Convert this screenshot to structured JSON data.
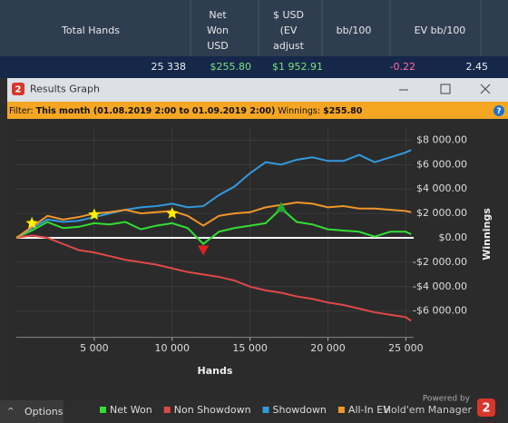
{
  "summary": {
    "headers": [
      [
        "Total Hands"
      ],
      [
        "Net",
        "Won",
        "USD"
      ],
      [
        "$ USD",
        "(EV",
        "adjust"
      ],
      [
        "bb/100"
      ],
      [
        "EV bb/100"
      ]
    ],
    "values": [
      "25 338",
      "$255.80",
      "$1 952.91",
      "-0.22",
      "2.45"
    ]
  },
  "window": {
    "title": "Results Graph",
    "filter_label": "Filter:",
    "filter_period": "This month (01.08.2019 2:00 to 01.09.2019 2:00)",
    "winnings_label": "Winnings:",
    "winnings": "$255.80"
  },
  "chart_data": {
    "type": "line",
    "x_label": "Hands",
    "y_label": "Winnings",
    "x": [
      0,
      1000,
      2000,
      3000,
      4000,
      5000,
      6000,
      7000,
      8000,
      9000,
      10000,
      11000,
      12000,
      13000,
      14000,
      15000,
      16000,
      17000,
      18000,
      19000,
      20000,
      21000,
      22000,
      23000,
      24000,
      25000,
      25338
    ],
    "series": [
      {
        "name": "Net Won",
        "color": "#33dd33",
        "values": [
          0,
          600,
          1300,
          800,
          900,
          1200,
          1100,
          1300,
          700,
          1000,
          1200,
          800,
          -500,
          500,
          800,
          1000,
          1200,
          2400,
          1300,
          1100,
          700,
          600,
          500,
          100,
          500,
          500,
          300
        ]
      },
      {
        "name": "Non Showdown",
        "color": "#e04848",
        "values": [
          0,
          200,
          0,
          -500,
          -1000,
          -1200,
          -1500,
          -1800,
          -2000,
          -2200,
          -2500,
          -2800,
          -3000,
          -3200,
          -3500,
          -4000,
          -4300,
          -4500,
          -4800,
          -5000,
          -5300,
          -5500,
          -5800,
          -6100,
          -6300,
          -6500,
          -6800
        ]
      },
      {
        "name": "Showdown",
        "color": "#3399dd",
        "values": [
          0,
          800,
          1500,
          1300,
          1400,
          1700,
          2000,
          2300,
          2500,
          2600,
          2800,
          2500,
          2600,
          3500,
          4200,
          5300,
          6200,
          6000,
          6400,
          6600,
          6300,
          6300,
          6800,
          6200,
          6600,
          7000,
          7200
        ]
      },
      {
        "name": "All-In EV",
        "color": "#f0962a",
        "values": [
          0,
          900,
          1800,
          1500,
          1700,
          2000,
          2100,
          2300,
          2000,
          2100,
          2200,
          1800,
          1000,
          1800,
          2000,
          2100,
          2500,
          2700,
          2900,
          2800,
          2500,
          2600,
          2400,
          2400,
          2300,
          2200,
          2100
        ]
      }
    ],
    "markers": [
      {
        "shape": "star",
        "color": "#ffee00",
        "x": 1000,
        "y": 1200
      },
      {
        "shape": "star",
        "color": "#ffee00",
        "x": 5000,
        "y": 1900
      },
      {
        "shape": "star",
        "color": "#ffee00",
        "x": 10000,
        "y": 2000
      },
      {
        "shape": "down",
        "color": "#dd2222",
        "x": 12000,
        "y": -1000
      },
      {
        "shape": "up",
        "color": "#22aa33",
        "x": 17000,
        "y": 2500
      }
    ],
    "xlim": [
      0,
      25500
    ],
    "ylim": [
      -8000,
      9000
    ],
    "xticks": [
      {
        "value": 5000,
        "label": "5 000"
      },
      {
        "value": 10000,
        "label": "10 000"
      },
      {
        "value": 15000,
        "label": "15 000"
      },
      {
        "value": 20000,
        "label": "20 000"
      },
      {
        "value": 25000,
        "label": "25 000"
      }
    ],
    "yticks": [
      {
        "value": -6000,
        "label": "-$6 000.00"
      },
      {
        "value": -4000,
        "label": "-$4 000.00"
      },
      {
        "value": -2000,
        "label": "-$2 000.00"
      },
      {
        "value": 0,
        "label": "$0.00"
      },
      {
        "value": 2000,
        "label": "$2 000.00"
      },
      {
        "value": 4000,
        "label": "$4 000.00"
      },
      {
        "value": 6000,
        "label": "$6 000.00"
      },
      {
        "value": 8000,
        "label": "$8 000.00"
      }
    ],
    "grid": true
  },
  "footer": {
    "options": "Options",
    "powered": "Powered by",
    "brand": "Hold'em Manager",
    "logo": "2"
  }
}
